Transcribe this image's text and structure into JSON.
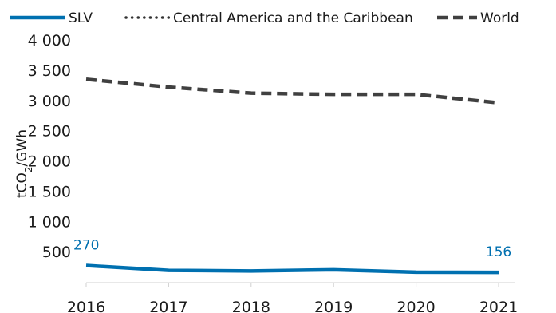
{
  "chart_data": {
    "type": "line",
    "title": "",
    "ylabel": "tCO2/GWh",
    "xlabel": "",
    "x": [
      2016,
      2017,
      2018,
      2019,
      2020,
      2021
    ],
    "ylim": [
      0,
      4000
    ],
    "yticks": [
      500,
      1000,
      1500,
      2000,
      2500,
      3000,
      3500,
      4000
    ],
    "ytick_labels": [
      "500",
      "1 000",
      "1 500",
      "2 000",
      "2 500",
      "3 000",
      "3 500",
      "4 000"
    ],
    "xtick_labels": [
      "2016",
      "2017",
      "2018",
      "2019",
      "2020",
      "2021"
    ],
    "legend": "top",
    "grid": false,
    "series": [
      {
        "name": "SLV",
        "values": [
          270,
          190,
          180,
          200,
          160,
          156
        ],
        "color": "#0070b0",
        "style": "solid"
      },
      {
        "name": "Central America and the Caribbean",
        "values": [
          null,
          null,
          null,
          null,
          null,
          null
        ],
        "color": "#333333",
        "style": "dotted"
      },
      {
        "name": "World",
        "values": [
          3350,
          3220,
          3120,
          3100,
          3100,
          2960
        ],
        "color": "#404040",
        "style": "dashed"
      }
    ],
    "annotations": [
      {
        "series": "SLV",
        "x": 2016,
        "label": "270"
      },
      {
        "series": "SLV",
        "x": 2021,
        "label": "156"
      }
    ]
  }
}
